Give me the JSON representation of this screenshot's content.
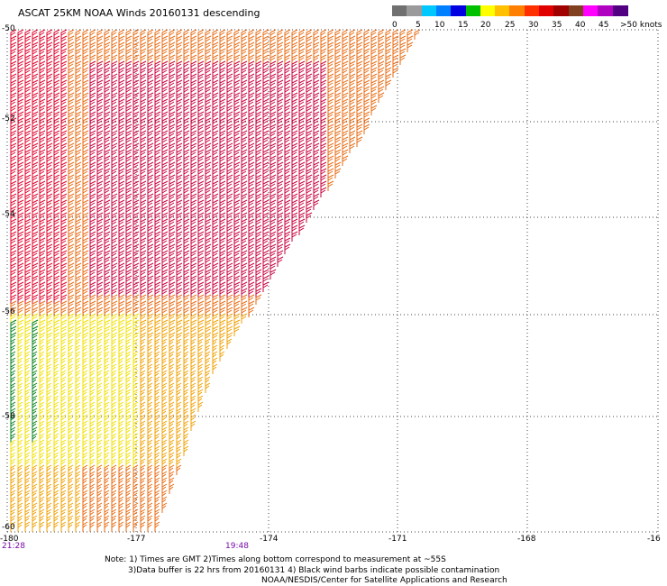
{
  "title": "ASCAT 25KM NOAA Winds 20160131 descending",
  "colorbar": {
    "colors": [
      "#707070",
      "#9a9a9a",
      "#00c8ff",
      "#0080ff",
      "#0000e0",
      "#00c000",
      "#ffff00",
      "#ffc000",
      "#ff8000",
      "#ff3000",
      "#e00000",
      "#a00000",
      "#804020",
      "#ff00ff",
      "#b000c0",
      "#500080"
    ],
    "labels": [
      "0",
      "5",
      "10",
      "15",
      "20",
      "25",
      "30",
      "35",
      "40",
      "45",
      ">50 knots"
    ]
  },
  "lat_labels": [
    "-50",
    "-52",
    "-54",
    "-56",
    "-58",
    "-60"
  ],
  "lon_labels": [
    "-180",
    "-177",
    "-174",
    "-171",
    "-168",
    "-16"
  ],
  "times": [
    "21:28",
    "19:48"
  ],
  "notes": [
    "Note: 1) Times are GMT 2)Times along bottom correspond to measurement at ~55S",
    "3)Data buffer is 22 hrs from 20160131 4) Black wind barbs indicate possible contamination",
    "NOAA/NESDIS/Center for Satellite Applications and Research"
  ],
  "barb_colors": {
    "red": "#e0002a",
    "crimson": "#c8003c",
    "orange": "#e86a10",
    "amber": "#f0a000",
    "yellow": "#f0e000",
    "green": "#00801a"
  }
}
